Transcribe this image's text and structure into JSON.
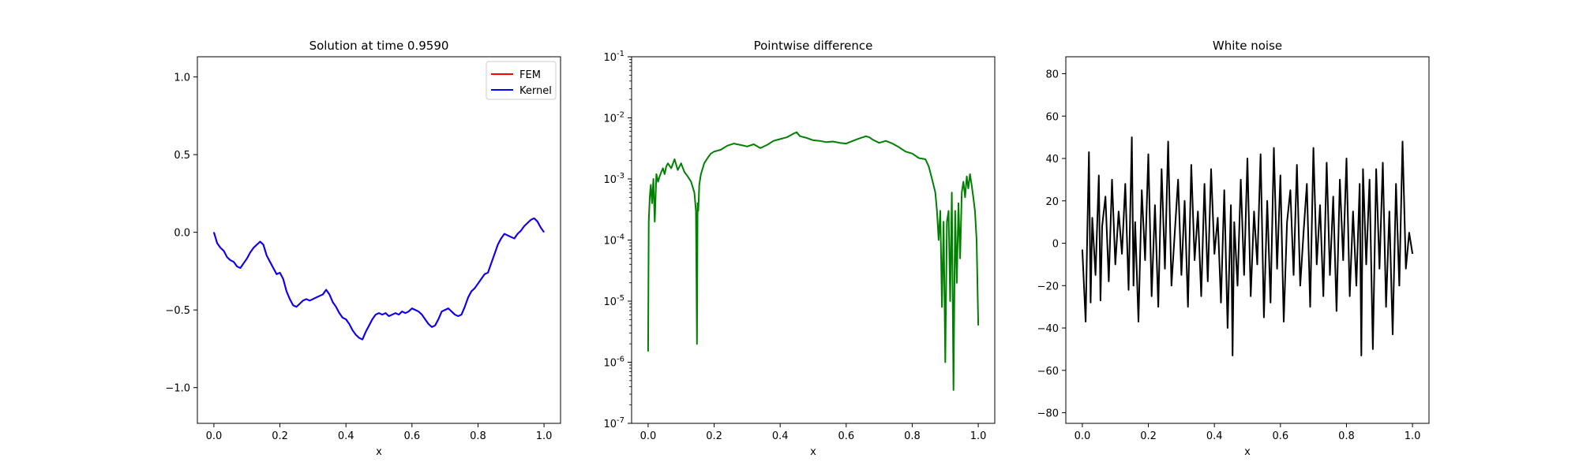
{
  "chart_data": [
    {
      "type": "line",
      "title": "Solution at time 0.9590",
      "xlabel": "x",
      "ylabel": "",
      "xlim": [
        -0.05,
        1.05
      ],
      "ylim": [
        -1.23,
        1.13
      ],
      "x_ticks": [
        "0.0",
        "0.2",
        "0.4",
        "0.6",
        "0.8",
        "1.0"
      ],
      "y_ticks": [
        "-1.0",
        "-0.5",
        "0.0",
        "0.5",
        "1.0"
      ],
      "legend": {
        "placement": "upper right",
        "entries": [
          "FEM",
          "Kernel"
        ]
      },
      "series": [
        {
          "name": "FEM",
          "color": "#ff0000",
          "x": [
            0.0,
            0.01,
            0.02,
            0.03,
            0.04,
            0.05,
            0.06,
            0.07,
            0.08,
            0.09,
            0.1,
            0.11,
            0.12,
            0.13,
            0.14,
            0.15,
            0.16,
            0.17,
            0.18,
            0.19,
            0.2,
            0.21,
            0.22,
            0.23,
            0.24,
            0.25,
            0.26,
            0.27,
            0.28,
            0.29,
            0.3,
            0.31,
            0.32,
            0.33,
            0.34,
            0.35,
            0.36,
            0.37,
            0.38,
            0.39,
            0.4,
            0.41,
            0.42,
            0.43,
            0.44,
            0.45,
            0.46,
            0.47,
            0.48,
            0.49,
            0.5,
            0.51,
            0.52,
            0.53,
            0.54,
            0.55,
            0.56,
            0.57,
            0.58,
            0.59,
            0.6,
            0.61,
            0.62,
            0.63,
            0.64,
            0.65,
            0.66,
            0.67,
            0.68,
            0.69,
            0.7,
            0.71,
            0.72,
            0.73,
            0.74,
            0.75,
            0.76,
            0.77,
            0.78,
            0.79,
            0.8,
            0.81,
            0.82,
            0.83,
            0.84,
            0.85,
            0.86,
            0.87,
            0.88,
            0.89,
            0.9,
            0.91,
            0.92,
            0.93,
            0.94,
            0.95,
            0.96,
            0.97,
            0.98,
            0.99,
            1.0
          ],
          "y": [
            0.0,
            -0.07,
            -0.1,
            -0.12,
            -0.16,
            -0.18,
            -0.19,
            -0.22,
            -0.23,
            -0.2,
            -0.17,
            -0.13,
            -0.1,
            -0.08,
            -0.06,
            -0.08,
            -0.15,
            -0.19,
            -0.23,
            -0.27,
            -0.26,
            -0.3,
            -0.38,
            -0.43,
            -0.47,
            -0.48,
            -0.46,
            -0.44,
            -0.43,
            -0.44,
            -0.43,
            -0.42,
            -0.41,
            -0.4,
            -0.37,
            -0.4,
            -0.45,
            -0.48,
            -0.52,
            -0.55,
            -0.56,
            -0.59,
            -0.63,
            -0.66,
            -0.68,
            -0.69,
            -0.64,
            -0.6,
            -0.56,
            -0.53,
            -0.52,
            -0.53,
            -0.52,
            -0.54,
            -0.53,
            -0.52,
            -0.53,
            -0.51,
            -0.52,
            -0.51,
            -0.49,
            -0.5,
            -0.51,
            -0.53,
            -0.56,
            -0.59,
            -0.61,
            -0.6,
            -0.56,
            -0.51,
            -0.5,
            -0.49,
            -0.51,
            -0.53,
            -0.54,
            -0.53,
            -0.48,
            -0.42,
            -0.38,
            -0.36,
            -0.33,
            -0.3,
            -0.27,
            -0.26,
            -0.2,
            -0.14,
            -0.08,
            -0.04,
            -0.01,
            -0.02,
            -0.03,
            -0.04,
            -0.01,
            0.01,
            0.04,
            0.06,
            0.08,
            0.09,
            0.07,
            0.03,
            0.0
          ]
        },
        {
          "name": "Kernel",
          "color": "#0000ff",
          "x": [
            0.0,
            0.01,
            0.02,
            0.03,
            0.04,
            0.05,
            0.06,
            0.07,
            0.08,
            0.09,
            0.1,
            0.11,
            0.12,
            0.13,
            0.14,
            0.15,
            0.16,
            0.17,
            0.18,
            0.19,
            0.2,
            0.21,
            0.22,
            0.23,
            0.24,
            0.25,
            0.26,
            0.27,
            0.28,
            0.29,
            0.3,
            0.31,
            0.32,
            0.33,
            0.34,
            0.35,
            0.36,
            0.37,
            0.38,
            0.39,
            0.4,
            0.41,
            0.42,
            0.43,
            0.44,
            0.45,
            0.46,
            0.47,
            0.48,
            0.49,
            0.5,
            0.51,
            0.52,
            0.53,
            0.54,
            0.55,
            0.56,
            0.57,
            0.58,
            0.59,
            0.6,
            0.61,
            0.62,
            0.63,
            0.64,
            0.65,
            0.66,
            0.67,
            0.68,
            0.69,
            0.7,
            0.71,
            0.72,
            0.73,
            0.74,
            0.75,
            0.76,
            0.77,
            0.78,
            0.79,
            0.8,
            0.81,
            0.82,
            0.83,
            0.84,
            0.85,
            0.86,
            0.87,
            0.88,
            0.89,
            0.9,
            0.91,
            0.92,
            0.93,
            0.94,
            0.95,
            0.96,
            0.97,
            0.98,
            0.99,
            1.0
          ],
          "y": [
            0.0,
            -0.07,
            -0.1,
            -0.12,
            -0.16,
            -0.18,
            -0.19,
            -0.22,
            -0.23,
            -0.2,
            -0.17,
            -0.13,
            -0.1,
            -0.08,
            -0.06,
            -0.08,
            -0.15,
            -0.19,
            -0.23,
            -0.27,
            -0.26,
            -0.3,
            -0.38,
            -0.43,
            -0.47,
            -0.48,
            -0.46,
            -0.44,
            -0.43,
            -0.44,
            -0.43,
            -0.42,
            -0.41,
            -0.4,
            -0.37,
            -0.4,
            -0.45,
            -0.48,
            -0.52,
            -0.55,
            -0.56,
            -0.59,
            -0.63,
            -0.66,
            -0.68,
            -0.69,
            -0.64,
            -0.6,
            -0.56,
            -0.53,
            -0.52,
            -0.53,
            -0.52,
            -0.54,
            -0.53,
            -0.52,
            -0.53,
            -0.51,
            -0.52,
            -0.51,
            -0.49,
            -0.5,
            -0.51,
            -0.53,
            -0.56,
            -0.59,
            -0.61,
            -0.6,
            -0.56,
            -0.51,
            -0.5,
            -0.49,
            -0.51,
            -0.53,
            -0.54,
            -0.53,
            -0.48,
            -0.42,
            -0.38,
            -0.36,
            -0.33,
            -0.3,
            -0.27,
            -0.26,
            -0.2,
            -0.14,
            -0.08,
            -0.04,
            -0.01,
            -0.02,
            -0.03,
            -0.04,
            -0.01,
            0.01,
            0.04,
            0.06,
            0.08,
            0.09,
            0.07,
            0.03,
            0.0
          ]
        }
      ]
    },
    {
      "type": "line",
      "title": "Pointwise difference",
      "xlabel": "x",
      "ylabel": "",
      "yscale": "log",
      "xlim": [
        -0.05,
        1.05
      ],
      "ylim": [
        1e-07,
        0.1
      ],
      "x_ticks": [
        "0.0",
        "0.2",
        "0.4",
        "0.6",
        "0.8",
        "1.0"
      ],
      "y_ticks": [
        {
          "base": "10",
          "exp": "-7"
        },
        {
          "base": "10",
          "exp": "-6"
        },
        {
          "base": "10",
          "exp": "-5"
        },
        {
          "base": "10",
          "exp": "-4"
        },
        {
          "base": "10",
          "exp": "-3"
        },
        {
          "base": "10",
          "exp": "-2"
        },
        {
          "base": "10",
          "exp": "-1"
        }
      ],
      "series": [
        {
          "color": "#008000",
          "x": [
            0.0,
            0.002,
            0.005,
            0.008,
            0.012,
            0.016,
            0.02,
            0.025,
            0.03,
            0.035,
            0.04,
            0.045,
            0.05,
            0.055,
            0.06,
            0.07,
            0.08,
            0.09,
            0.1,
            0.11,
            0.12,
            0.13,
            0.14,
            0.145,
            0.148,
            0.15,
            0.152,
            0.155,
            0.16,
            0.17,
            0.18,
            0.19,
            0.2,
            0.22,
            0.24,
            0.26,
            0.28,
            0.3,
            0.32,
            0.34,
            0.36,
            0.38,
            0.4,
            0.42,
            0.44,
            0.45,
            0.46,
            0.48,
            0.5,
            0.52,
            0.54,
            0.56,
            0.58,
            0.6,
            0.62,
            0.64,
            0.66,
            0.67,
            0.68,
            0.7,
            0.72,
            0.74,
            0.76,
            0.78,
            0.8,
            0.82,
            0.84,
            0.85,
            0.86,
            0.87,
            0.875,
            0.88,
            0.885,
            0.89,
            0.895,
            0.9,
            0.905,
            0.91,
            0.915,
            0.92,
            0.925,
            0.93,
            0.935,
            0.94,
            0.945,
            0.95,
            0.955,
            0.96,
            0.965,
            0.97,
            0.975,
            0.98,
            0.985,
            0.99,
            0.995,
            1.0
          ],
          "y": [
            1.5e-06,
            0.0002,
            0.0005,
            0.0008,
            0.0004,
            0.001,
            0.0002,
            0.0012,
            0.0009,
            0.0011,
            0.0013,
            0.0015,
            0.0012,
            0.0016,
            0.0018,
            0.0015,
            0.0021,
            0.0014,
            0.0018,
            0.0013,
            0.0011,
            0.0009,
            0.0006,
            0.0003,
            2e-06,
            0.0004,
            0.0003,
            0.0008,
            0.0012,
            0.0018,
            0.0022,
            0.0026,
            0.0028,
            0.003,
            0.0035,
            0.0038,
            0.0036,
            0.0034,
            0.0037,
            0.0032,
            0.0036,
            0.0042,
            0.0045,
            0.0048,
            0.0055,
            0.0058,
            0.005,
            0.0047,
            0.0043,
            0.0042,
            0.004,
            0.0041,
            0.0039,
            0.0038,
            0.0042,
            0.0046,
            0.005,
            0.0048,
            0.0044,
            0.0039,
            0.0042,
            0.0038,
            0.0033,
            0.0028,
            0.0026,
            0.0022,
            0.0021,
            0.0016,
            0.001,
            0.0006,
            0.0003,
            0.0001,
            0.0003,
            8e-06,
            0.0002,
            1e-06,
            0.0002,
            0.0003,
            1e-05,
            0.0006,
            3.5e-07,
            0.0003,
            2e-05,
            0.0004,
            5e-05,
            0.0006,
            0.0009,
            0.0005,
            0.0011,
            0.0007,
            0.0012,
            0.0008,
            0.0005,
            0.0003,
            0.0001,
            4e-06
          ]
        }
      ]
    },
    {
      "type": "line",
      "title": "White noise",
      "xlabel": "x",
      "ylabel": "",
      "xlim": [
        -0.05,
        1.05
      ],
      "ylim": [
        -85,
        88
      ],
      "x_ticks": [
        "0.0",
        "0.2",
        "0.4",
        "0.6",
        "0.8",
        "1.0"
      ],
      "y_ticks": [
        "-80",
        "-60",
        "-40",
        "-20",
        "0",
        "20",
        "40",
        "60",
        "80"
      ],
      "series": [
        {
          "color": "#000000",
          "x": [
            0.0,
            0.01,
            0.015,
            0.02,
            0.025,
            0.03,
            0.04,
            0.05,
            0.055,
            0.06,
            0.07,
            0.08,
            0.09,
            0.1,
            0.11,
            0.12,
            0.13,
            0.14,
            0.15,
            0.155,
            0.16,
            0.17,
            0.18,
            0.19,
            0.2,
            0.21,
            0.22,
            0.23,
            0.24,
            0.25,
            0.26,
            0.27,
            0.28,
            0.29,
            0.3,
            0.31,
            0.32,
            0.33,
            0.34,
            0.35,
            0.36,
            0.37,
            0.38,
            0.39,
            0.4,
            0.41,
            0.42,
            0.43,
            0.44,
            0.45,
            0.455,
            0.46,
            0.47,
            0.48,
            0.49,
            0.5,
            0.51,
            0.52,
            0.53,
            0.54,
            0.55,
            0.56,
            0.57,
            0.58,
            0.59,
            0.6,
            0.61,
            0.62,
            0.63,
            0.64,
            0.65,
            0.66,
            0.67,
            0.68,
            0.69,
            0.7,
            0.71,
            0.72,
            0.73,
            0.74,
            0.75,
            0.76,
            0.77,
            0.78,
            0.79,
            0.8,
            0.81,
            0.82,
            0.83,
            0.84,
            0.845,
            0.85,
            0.86,
            0.87,
            0.88,
            0.89,
            0.9,
            0.91,
            0.92,
            0.93,
            0.94,
            0.95,
            0.96,
            0.97,
            0.98,
            0.99,
            1.0
          ],
          "y": [
            -3,
            -37,
            5,
            43,
            -28,
            12,
            -15,
            32,
            -27,
            8,
            22,
            -18,
            30,
            -10,
            15,
            -5,
            28,
            -22,
            50,
            -20,
            10,
            -37,
            25,
            -8,
            42,
            -25,
            18,
            -30,
            35,
            -12,
            48,
            -20,
            5,
            30,
            -15,
            20,
            -30,
            37,
            -8,
            15,
            -25,
            28,
            -18,
            35,
            -5,
            12,
            -28,
            25,
            -40,
            18,
            -53,
            10,
            -20,
            30,
            -15,
            40,
            -25,
            15,
            -10,
            42,
            -35,
            20,
            -28,
            45,
            -12,
            32,
            -37,
            10,
            25,
            -15,
            37,
            -20,
            5,
            28,
            -30,
            45,
            -10,
            18,
            -25,
            38,
            -15,
            22,
            -32,
            30,
            -8,
            40,
            -25,
            15,
            -20,
            28,
            -53,
            35,
            -10,
            30,
            -50,
            35,
            -12,
            38,
            -30,
            15,
            -43,
            28,
            -20,
            48,
            -12,
            5,
            -5
          ]
        }
      ]
    }
  ]
}
